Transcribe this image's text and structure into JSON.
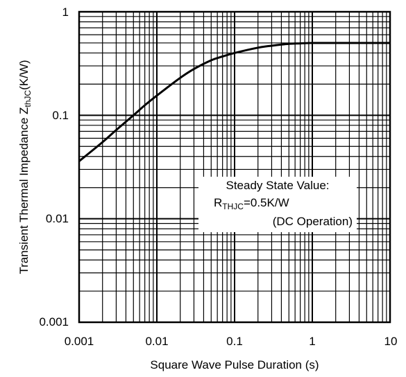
{
  "chart_data": {
    "type": "line",
    "xlabel": "Square Wave Pulse Duration (s)",
    "ylabel": {
      "main": "Transient Thermal Impedance Z",
      "sub": "thJC",
      "unit": "(K/W)"
    },
    "xscale": "log",
    "yscale": "log",
    "xlim": [
      0.001,
      10
    ],
    "ylim": [
      0.001,
      1
    ],
    "grid": true,
    "x_ticks": [
      "0.001",
      "0.01",
      "0.1",
      "1",
      "10"
    ],
    "y_ticks": [
      "0.001",
      "0.01",
      "0.1",
      "1"
    ],
    "series": [
      {
        "x": [
          0.001,
          0.002,
          0.003,
          0.005,
          0.007,
          0.01,
          0.02,
          0.03,
          0.05,
          0.07,
          0.1,
          0.2,
          0.3,
          0.5,
          0.7,
          1,
          2,
          5,
          10
        ],
        "values": [
          0.036,
          0.055,
          0.072,
          0.1,
          0.125,
          0.155,
          0.23,
          0.28,
          0.34,
          0.37,
          0.4,
          0.45,
          0.47,
          0.49,
          0.495,
          0.5,
          0.5,
          0.5,
          0.5
        ]
      }
    ],
    "annotation": {
      "line1": "Steady State Value:",
      "line2_main": "R",
      "line2_sub": "THJC",
      "line2_rest": "=0.5K/W",
      "line3": "(DC Operation)"
    }
  }
}
